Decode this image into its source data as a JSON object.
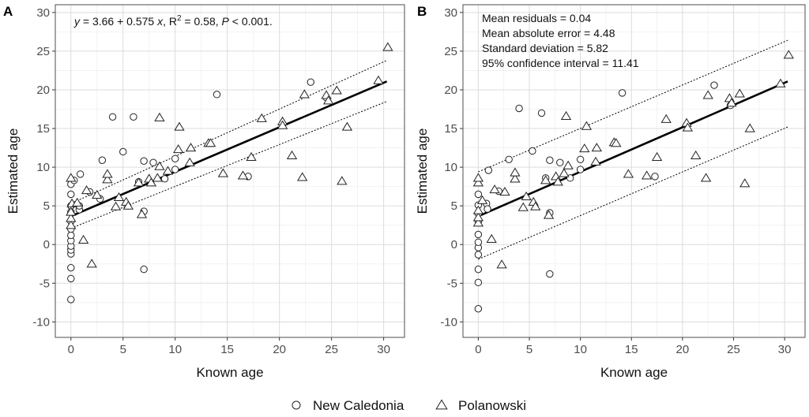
{
  "chart_data": [
    {
      "type": "scatter",
      "panel_label": "A",
      "xlabel": "Known age",
      "ylabel": "Estimated age",
      "xlim": [
        -1.5,
        32
      ],
      "ylim": [
        -12,
        31
      ],
      "x_ticks": [
        0,
        5,
        10,
        15,
        20,
        25,
        30
      ],
      "y_ticks": [
        -10,
        -5,
        0,
        5,
        10,
        15,
        20,
        25,
        30
      ],
      "grid": true,
      "annotation": {
        "eq_y": "y",
        "eq_mid": " = 3.66 + 0.575 ",
        "eq_x": "x",
        "eq_r": ", R",
        "eq_sup": "2",
        "eq_rest": " = 0.58, ",
        "eq_p": "P",
        "eq_end": " < 0.001."
      },
      "regression": {
        "intercept": 3.66,
        "slope": 0.575,
        "x_range": [
          0,
          30.3
        ]
      },
      "band": {
        "lower": [
          [
            0,
            2.1
          ],
          [
            30.3,
            18.5
          ]
        ],
        "upper": [
          [
            0,
            5.3
          ],
          [
            30.3,
            23.8
          ]
        ]
      },
      "series": [
        {
          "name": "New Caledonia",
          "marker": "circle",
          "points": [
            [
              0,
              -7.1
            ],
            [
              0,
              -4.4
            ],
            [
              0,
              -3.0
            ],
            [
              0,
              -1.2
            ],
            [
              0,
              -0.7
            ],
            [
              0,
              -0.2
            ],
            [
              0,
              0.5
            ],
            [
              0,
              1.2
            ],
            [
              0,
              2.0
            ],
            [
              0,
              3.0
            ],
            [
              0,
              4.2
            ],
            [
              0,
              5.0
            ],
            [
              0,
              6.5
            ],
            [
              0,
              7.8
            ],
            [
              0.3,
              8.3
            ],
            [
              0.8,
              4.5
            ],
            [
              0.8,
              5.0
            ],
            [
              0.9,
              9.1
            ],
            [
              1.8,
              6.8
            ],
            [
              2.8,
              5.9
            ],
            [
              3.0,
              10.9
            ],
            [
              4.0,
              16.5
            ],
            [
              5.0,
              12.0
            ],
            [
              6.0,
              16.5
            ],
            [
              6.5,
              8.1
            ],
            [
              7.0,
              10.8
            ],
            [
              7.0,
              4.3
            ],
            [
              7.0,
              -3.2
            ],
            [
              7.9,
              10.6
            ],
            [
              9.0,
              8.5
            ],
            [
              10.0,
              9.7
            ],
            [
              10.0,
              11.1
            ],
            [
              14.0,
              19.4
            ],
            [
              17.0,
              8.8
            ],
            [
              23.0,
              21.0
            ],
            [
              24.5,
              19.0
            ]
          ]
        },
        {
          "name": "Polanowski",
          "marker": "triangle",
          "points": [
            [
              0,
              2.5
            ],
            [
              0,
              3.4
            ],
            [
              0,
              4.2
            ],
            [
              0,
              8.6
            ],
            [
              0.1,
              5.3
            ],
            [
              0.6,
              5.4
            ],
            [
              1.2,
              0.6
            ],
            [
              1.5,
              7.0
            ],
            [
              2.0,
              -2.5
            ],
            [
              2.5,
              6.4
            ],
            [
              3.5,
              8.4
            ],
            [
              3.5,
              9.1
            ],
            [
              4.3,
              4.9
            ],
            [
              4.6,
              6.1
            ],
            [
              5.3,
              5.5
            ],
            [
              5.5,
              5.0
            ],
            [
              6.5,
              8.0
            ],
            [
              6.8,
              3.9
            ],
            [
              7.5,
              8.5
            ],
            [
              7.7,
              8.0
            ],
            [
              8.3,
              8.6
            ],
            [
              8.5,
              10.1
            ],
            [
              8.5,
              16.4
            ],
            [
              9.3,
              9.5
            ],
            [
              10.3,
              12.3
            ],
            [
              10.4,
              15.2
            ],
            [
              11.4,
              10.6
            ],
            [
              11.5,
              12.5
            ],
            [
              13.2,
              13.1
            ],
            [
              13.4,
              13.1
            ],
            [
              14.6,
              9.2
            ],
            [
              16.5,
              8.9
            ],
            [
              17.3,
              11.3
            ],
            [
              18.3,
              16.3
            ],
            [
              20.3,
              15.9
            ],
            [
              20.3,
              15.4
            ],
            [
              21.2,
              11.5
            ],
            [
              22.2,
              8.7
            ],
            [
              22.4,
              19.4
            ],
            [
              24.5,
              19.3
            ],
            [
              24.7,
              18.6
            ],
            [
              25.5,
              19.9
            ],
            [
              26.0,
              8.2
            ],
            [
              26.5,
              15.2
            ],
            [
              29.5,
              21.2
            ],
            [
              30.4,
              25.5
            ]
          ]
        }
      ]
    },
    {
      "type": "scatter",
      "panel_label": "B",
      "xlabel": "Known age",
      "ylabel": "Estimated age",
      "xlim": [
        -1.5,
        32
      ],
      "ylim": [
        -12,
        31
      ],
      "x_ticks": [
        0,
        5,
        10,
        15,
        20,
        25,
        30
      ],
      "y_ticks": [
        -10,
        -5,
        0,
        5,
        10,
        15,
        20,
        25,
        30
      ],
      "grid": true,
      "annotation_lines": [
        "Mean residuals =  0.04",
        "Mean absolute error =  4.48",
        "Standard deviation =  5.82",
        "95% confidence interval =  11.41"
      ],
      "regression": {
        "intercept": 3.66,
        "slope": 0.575,
        "x_range": [
          0,
          30.3
        ]
      },
      "band": {
        "lower": [
          [
            0,
            -1.9
          ],
          [
            30.3,
            15.2
          ]
        ],
        "upper": [
          [
            0,
            9.4
          ],
          [
            30.3,
            26.4
          ]
        ]
      },
      "series": [
        {
          "name": "New Caledonia",
          "marker": "circle",
          "points": [
            [
              0,
              -8.3
            ],
            [
              0,
              -4.9
            ],
            [
              0,
              -3.2
            ],
            [
              0,
              -1.3
            ],
            [
              0,
              -0.4
            ],
            [
              0,
              0.3
            ],
            [
              0,
              1.3
            ],
            [
              0,
              3.0
            ],
            [
              0,
              4.0
            ],
            [
              0,
              5.1
            ],
            [
              0,
              6.5
            ],
            [
              0.8,
              5.3
            ],
            [
              0.9,
              4.6
            ],
            [
              1.0,
              9.6
            ],
            [
              2.0,
              6.9
            ],
            [
              3.0,
              11.0
            ],
            [
              4.0,
              17.6
            ],
            [
              5.3,
              12.1
            ],
            [
              6.2,
              17.0
            ],
            [
              6.6,
              8.6
            ],
            [
              7.0,
              10.9
            ],
            [
              7.0,
              4.1
            ],
            [
              7.0,
              -3.8
            ],
            [
              8.0,
              10.6
            ],
            [
              9.0,
              8.6
            ],
            [
              10.0,
              11.0
            ],
            [
              10.0,
              9.7
            ],
            [
              14.1,
              19.6
            ],
            [
              17.3,
              8.8
            ],
            [
              23.1,
              20.6
            ],
            [
              24.7,
              18.0
            ]
          ]
        },
        {
          "name": "Polanowski",
          "marker": "triangle",
          "points": [
            [
              0,
              2.8
            ],
            [
              0,
              3.5
            ],
            [
              0,
              4.4
            ],
            [
              0,
              8.0
            ],
            [
              0,
              8.6
            ],
            [
              0.4,
              5.7
            ],
            [
              1.3,
              0.7
            ],
            [
              1.6,
              7.1
            ],
            [
              2.3,
              -2.6
            ],
            [
              2.6,
              6.8
            ],
            [
              3.6,
              8.5
            ],
            [
              3.6,
              9.3
            ],
            [
              4.4,
              4.8
            ],
            [
              4.7,
              6.2
            ],
            [
              5.4,
              5.5
            ],
            [
              5.6,
              4.9
            ],
            [
              6.6,
              8.3
            ],
            [
              6.9,
              3.8
            ],
            [
              7.6,
              8.8
            ],
            [
              7.8,
              8.1
            ],
            [
              8.4,
              9.2
            ],
            [
              8.6,
              16.6
            ],
            [
              8.8,
              10.2
            ],
            [
              10.4,
              12.4
            ],
            [
              10.6,
              15.3
            ],
            [
              11.5,
              10.7
            ],
            [
              11.6,
              12.5
            ],
            [
              13.3,
              13.2
            ],
            [
              13.5,
              13.1
            ],
            [
              14.7,
              9.1
            ],
            [
              16.5,
              8.9
            ],
            [
              17.5,
              11.3
            ],
            [
              18.4,
              16.2
            ],
            [
              20.4,
              15.7
            ],
            [
              20.5,
              15.1
            ],
            [
              21.3,
              11.5
            ],
            [
              22.3,
              8.6
            ],
            [
              22.5,
              19.3
            ],
            [
              24.6,
              18.9
            ],
            [
              24.8,
              18.3
            ],
            [
              25.6,
              19.5
            ],
            [
              26.1,
              7.9
            ],
            [
              26.6,
              15.0
            ],
            [
              29.6,
              20.8
            ],
            [
              30.4,
              24.5
            ]
          ]
        }
      ]
    }
  ],
  "legend": {
    "items": [
      {
        "label": "New Caledonia",
        "marker": "circle"
      },
      {
        "label": "Polanowski",
        "marker": "triangle"
      }
    ],
    "placement": "bottom"
  }
}
